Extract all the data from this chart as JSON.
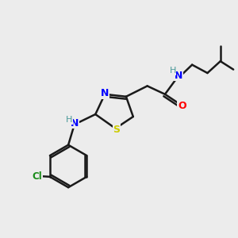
{
  "bg_color": "#ececec",
  "bond_color": "#1a1a1a",
  "N_color": "#0000ff",
  "S_color": "#cccc00",
  "O_color": "#ff0000",
  "H_color": "#4a9999",
  "Cl_color": "#1a8c1a",
  "font_size": 9,
  "lw": 1.8,
  "xlim": [
    0,
    10
  ],
  "ylim": [
    0,
    10
  ]
}
